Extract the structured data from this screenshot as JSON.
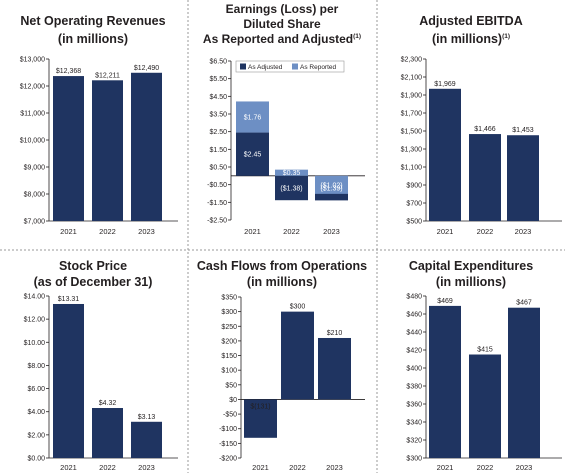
{
  "colors": {
    "adjusted": "#1f3461",
    "reported": "#6d8fc4",
    "bar": "#1f3461"
  },
  "chart_data": [
    {
      "type": "bar",
      "title": [
        "Net Operating Revenues",
        "(in millions)"
      ],
      "categories": [
        "2021",
        "2022",
        "2023"
      ],
      "values": [
        12368,
        12211,
        12490
      ],
      "data_labels": [
        "$12,368",
        "$12,211",
        "$12,490"
      ],
      "ylim": [
        7000,
        13000
      ],
      "yticks": [
        7000,
        8000,
        9000,
        10000,
        11000,
        12000,
        13000
      ],
      "ytick_labels": [
        "$7,000",
        "$8,000",
        "$9,000",
        "$10,000",
        "$11,000",
        "$12,000",
        "$13,000"
      ]
    },
    {
      "type": "bar",
      "title": [
        "Earnings (Loss) per",
        "Diluted Share",
        "As Reported and Adjusted"
      ],
      "title_superscript": "(1)",
      "categories": [
        "2021",
        "2022",
        "2023"
      ],
      "legend": [
        "As Adjusted",
        "As Reported"
      ],
      "legend_position": "top-right",
      "series": [
        {
          "name": "As Adjusted",
          "values": [
            2.45,
            -1.38,
            -1.39
          ],
          "labels": [
            "$2.45",
            "($1.38)",
            "($1.39)"
          ]
        },
        {
          "name": "As Reported",
          "values": [
            1.76,
            0.35,
            -1.02
          ],
          "labels": [
            "$1.76",
            "$0.35",
            "($1.02)"
          ]
        }
      ],
      "ylim": [
        -2.5,
        6.5
      ],
      "yticks": [
        -2.5,
        -1.5,
        -0.5,
        0.5,
        1.5,
        2.5,
        3.5,
        4.5,
        5.5,
        6.5
      ],
      "ytick_labels": [
        "-$2.50",
        "-$1.50",
        "-$0.50",
        "$0.50",
        "$1.50",
        "$2.50",
        "$3.50",
        "$4.50",
        "$5.50",
        "$6.50"
      ]
    },
    {
      "type": "bar",
      "title": [
        "Adjusted EBITDA",
        "(in millions)"
      ],
      "title_superscript": "(1)",
      "categories": [
        "2021",
        "2022",
        "2023"
      ],
      "values": [
        1969,
        1466,
        1453
      ],
      "data_labels": [
        "$1,969",
        "$1,466",
        "$1,453"
      ],
      "ylim": [
        500,
        2300
      ],
      "yticks": [
        500,
        700,
        900,
        1100,
        1300,
        1500,
        1700,
        1900,
        2100,
        2300
      ],
      "ytick_labels": [
        "$500",
        "$700",
        "$900",
        "$1,100",
        "$1,300",
        "$1,500",
        "$1,700",
        "$1,900",
        "$2,100",
        "$2,300"
      ]
    },
    {
      "type": "bar",
      "title": [
        "Stock Price",
        "(as of December 31)"
      ],
      "categories": [
        "2021",
        "2022",
        "2023"
      ],
      "values": [
        13.31,
        4.32,
        3.13
      ],
      "data_labels": [
        "$13.31",
        "$4.32",
        "$3.13"
      ],
      "ylim": [
        0,
        14
      ],
      "yticks": [
        0,
        2,
        4,
        6,
        8,
        10,
        12,
        14
      ],
      "ytick_labels": [
        "$0.00",
        "$2.00",
        "$4.00",
        "$6.00",
        "$8.00",
        "$10.00",
        "$12.00",
        "$14.00"
      ]
    },
    {
      "type": "bar",
      "title": [
        "Cash Flows from Operations",
        "(in millions)"
      ],
      "categories": [
        "2021",
        "2022",
        "2023"
      ],
      "values": [
        -131,
        300,
        210
      ],
      "data_labels": [
        "$(131)",
        "$300",
        "$210"
      ],
      "ylim": [
        -200,
        350
      ],
      "yticks": [
        -200,
        -150,
        -100,
        -50,
        0,
        50,
        100,
        150,
        200,
        250,
        300,
        350
      ],
      "ytick_labels": [
        "-$200",
        "-$150",
        "-$100",
        "-$50",
        "$0",
        "$50",
        "$100",
        "$150",
        "$200",
        "$250",
        "$300",
        "$350"
      ]
    },
    {
      "type": "bar",
      "title": [
        "Capital Expenditures",
        "(in millions)"
      ],
      "categories": [
        "2021",
        "2022",
        "2023"
      ],
      "values": [
        469,
        415,
        467
      ],
      "data_labels": [
        "$469",
        "$415",
        "$467"
      ],
      "ylim": [
        300,
        480
      ],
      "yticks": [
        300,
        320,
        340,
        360,
        380,
        400,
        420,
        440,
        460,
        480
      ],
      "ytick_labels": [
        "$300",
        "$320",
        "$340",
        "$360",
        "$380",
        "$400",
        "$420",
        "$440",
        "$460",
        "$480"
      ]
    }
  ]
}
